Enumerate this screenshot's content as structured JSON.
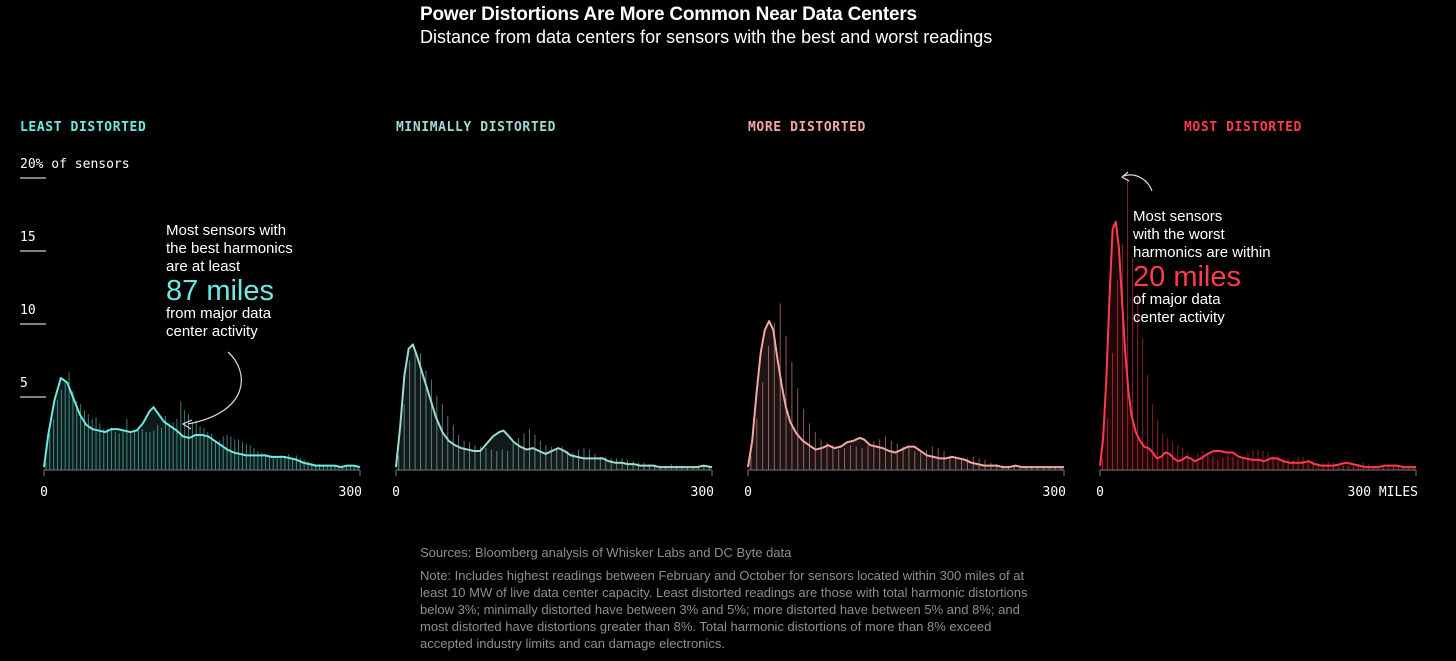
{
  "header": {
    "title": "Power Distortions Are More Common Near Data Centers",
    "subtitle": "Distance from data centers for sensors with the best and worst readings"
  },
  "footer": {
    "sources": "Sources: Bloomberg analysis of Whisker Labs and DC Byte data",
    "note": "Note: Includes highest readings between February and October for sensors located within 300 miles of at least 10 MW of live data center capacity. Least distorted readings are those with total harmonic distortions below 3%; minimally distorted have between 3% and 5%; more distorted have between 5% and 8%; and most distorted have distortions greater than 8%. Total harmonic distortions of more than 8% exceed accepted industry limits and can damage electronics."
  },
  "annotations": {
    "left": {
      "lines": [
        "Most sensors with",
        "the best harmonics",
        "are at least"
      ],
      "highlight": "87 miles",
      "after": [
        "from major data",
        "center activity"
      ]
    },
    "right": {
      "lines": [
        "Most sensors",
        "with the worst",
        "harmonics are within"
      ],
      "highlight": "20 miles",
      "after": [
        "of major data",
        "center activity"
      ]
    }
  },
  "chart_data": {
    "type": "area",
    "y_axis": {
      "ylim": [
        0,
        20
      ],
      "ticks": [
        {
          "value": 20,
          "label": "20% of sensors"
        },
        {
          "value": 15,
          "label": "15"
        },
        {
          "value": 10,
          "label": "10"
        },
        {
          "value": 5,
          "label": "5"
        }
      ]
    },
    "x_axis": {
      "xlim": [
        0,
        300
      ]
    },
    "panels": [
      {
        "name": "LEAST DISTORTED",
        "color": "#6ee8e0",
        "x_tick_labels": [
          "0",
          "300"
        ],
        "density": [
          [
            0,
            0.2
          ],
          [
            4,
            2.4
          ],
          [
            10,
            4.8
          ],
          [
            16,
            6.3
          ],
          [
            22,
            6.0
          ],
          [
            28,
            4.9
          ],
          [
            34,
            3.8
          ],
          [
            40,
            3.1
          ],
          [
            46,
            2.8
          ],
          [
            52,
            2.7
          ],
          [
            58,
            2.6
          ],
          [
            64,
            2.8
          ],
          [
            70,
            2.8
          ],
          [
            76,
            2.7
          ],
          [
            82,
            2.6
          ],
          [
            88,
            2.7
          ],
          [
            94,
            3.2
          ],
          [
            100,
            4.0
          ],
          [
            104,
            4.3
          ],
          [
            108,
            3.9
          ],
          [
            114,
            3.3
          ],
          [
            120,
            3.0
          ],
          [
            126,
            2.7
          ],
          [
            132,
            2.3
          ],
          [
            138,
            2.2
          ],
          [
            144,
            2.4
          ],
          [
            150,
            2.4
          ],
          [
            156,
            2.3
          ],
          [
            162,
            2.0
          ],
          [
            168,
            1.7
          ],
          [
            174,
            1.4
          ],
          [
            180,
            1.2
          ],
          [
            186,
            1.1
          ],
          [
            192,
            1.0
          ],
          [
            198,
            1.0
          ],
          [
            204,
            1.0
          ],
          [
            210,
            1.0
          ],
          [
            216,
            0.9
          ],
          [
            222,
            0.9
          ],
          [
            228,
            0.9
          ],
          [
            234,
            0.8
          ],
          [
            240,
            0.7
          ],
          [
            246,
            0.5
          ],
          [
            252,
            0.4
          ],
          [
            258,
            0.3
          ],
          [
            264,
            0.3
          ],
          [
            270,
            0.3
          ],
          [
            276,
            0.3
          ],
          [
            282,
            0.2
          ],
          [
            288,
            0.3
          ],
          [
            294,
            0.3
          ],
          [
            300,
            0.2
          ]
        ],
        "bars": [
          0.5,
          2.5,
          3.5,
          4.8,
          5.5,
          6.1,
          6.7,
          5.4,
          4.7,
          4.5,
          4.1,
          3.8,
          3.5,
          3.6,
          3.2,
          2.8,
          2.8,
          2.9,
          2.6,
          2.5,
          2.8,
          3.5,
          2.6,
          2.8,
          2.7,
          2.8,
          2.6,
          2.6,
          2.7,
          3.1,
          2.9,
          3.7,
          3.2,
          3.3,
          3.5,
          4.7,
          4.1,
          3.8,
          3.3,
          3.4,
          3.0,
          2.9,
          2.6,
          2.5,
          2.0,
          2.0,
          2.3,
          2.4,
          2.3,
          2.1,
          2.1,
          1.9,
          1.8,
          1.7,
          1.5,
          1.3,
          1.2,
          1.1,
          1.0,
          0.9,
          1.0,
          1.0,
          0.9,
          1.1,
          0.8,
          1.0,
          0.8,
          0.7,
          0.6,
          0.5,
          0.4,
          0.4,
          0.3,
          0.3,
          0.3,
          0.3,
          0.3,
          0.2,
          0.2,
          0.3,
          0.3,
          0.2
        ]
      },
      {
        "name": "MINIMALLY DISTORTED",
        "color": "#9fd9d3",
        "x_tick_labels": [
          "0",
          "300"
        ],
        "density": [
          [
            0,
            0.2
          ],
          [
            4,
            3.0
          ],
          [
            8,
            6.5
          ],
          [
            12,
            8.3
          ],
          [
            16,
            8.6
          ],
          [
            20,
            7.8
          ],
          [
            26,
            6.4
          ],
          [
            32,
            5.0
          ],
          [
            38,
            3.6
          ],
          [
            44,
            2.6
          ],
          [
            50,
            2.0
          ],
          [
            56,
            1.7
          ],
          [
            62,
            1.5
          ],
          [
            68,
            1.4
          ],
          [
            74,
            1.3
          ],
          [
            80,
            1.3
          ],
          [
            86,
            1.8
          ],
          [
            92,
            2.3
          ],
          [
            98,
            2.6
          ],
          [
            102,
            2.7
          ],
          [
            106,
            2.4
          ],
          [
            112,
            1.9
          ],
          [
            118,
            1.6
          ],
          [
            124,
            1.4
          ],
          [
            130,
            1.5
          ],
          [
            136,
            1.3
          ],
          [
            142,
            1.1
          ],
          [
            148,
            1.3
          ],
          [
            154,
            1.5
          ],
          [
            160,
            1.3
          ],
          [
            166,
            1.0
          ],
          [
            172,
            0.9
          ],
          [
            178,
            0.8
          ],
          [
            184,
            0.8
          ],
          [
            190,
            0.8
          ],
          [
            196,
            0.8
          ],
          [
            202,
            0.6
          ],
          [
            208,
            0.5
          ],
          [
            214,
            0.5
          ],
          [
            220,
            0.4
          ],
          [
            226,
            0.4
          ],
          [
            232,
            0.3
          ],
          [
            238,
            0.3
          ],
          [
            244,
            0.3
          ],
          [
            250,
            0.2
          ],
          [
            256,
            0.2
          ],
          [
            262,
            0.2
          ],
          [
            268,
            0.2
          ],
          [
            274,
            0.2
          ],
          [
            280,
            0.2
          ],
          [
            286,
            0.2
          ],
          [
            292,
            0.3
          ],
          [
            300,
            0.2
          ]
        ],
        "bars": [
          1.0,
          4.5,
          7.5,
          8.2,
          8.0,
          6.8,
          6.2,
          5.1,
          4.5,
          3.7,
          3.1,
          2.4,
          2.0,
          1.9,
          1.7,
          1.6,
          1.5,
          1.4,
          1.3,
          1.4,
          1.3,
          1.8,
          2.2,
          2.5,
          2.8,
          2.4,
          2.0,
          1.7,
          1.6,
          1.5,
          1.6,
          1.3,
          1.2,
          1.4,
          1.5,
          1.4,
          1.1,
          0.9,
          0.9,
          0.8,
          0.8,
          0.8,
          0.7,
          0.6,
          0.5,
          0.5,
          0.4,
          0.4,
          0.3,
          0.3,
          0.4,
          0.3,
          0.3,
          0.2,
          0.2,
          0.2,
          0.3,
          0.2
        ]
      },
      {
        "name": "MORE DISTORTED",
        "color": "#f4a7a4",
        "x_tick_labels": [
          "0",
          "300"
        ],
        "density": [
          [
            0,
            0.2
          ],
          [
            4,
            2.0
          ],
          [
            8,
            5.2
          ],
          [
            12,
            8.0
          ],
          [
            16,
            9.6
          ],
          [
            20,
            10.2
          ],
          [
            24,
            9.6
          ],
          [
            28,
            7.6
          ],
          [
            32,
            5.8
          ],
          [
            36,
            4.3
          ],
          [
            40,
            3.3
          ],
          [
            46,
            2.5
          ],
          [
            52,
            2.0
          ],
          [
            58,
            1.7
          ],
          [
            64,
            1.4
          ],
          [
            70,
            1.5
          ],
          [
            76,
            1.7
          ],
          [
            82,
            1.5
          ],
          [
            88,
            1.6
          ],
          [
            94,
            1.9
          ],
          [
            100,
            2.0
          ],
          [
            106,
            2.2
          ],
          [
            110,
            2.1
          ],
          [
            116,
            1.7
          ],
          [
            122,
            1.6
          ],
          [
            128,
            1.5
          ],
          [
            134,
            1.3
          ],
          [
            140,
            1.2
          ],
          [
            146,
            1.4
          ],
          [
            152,
            1.6
          ],
          [
            158,
            1.6
          ],
          [
            164,
            1.3
          ],
          [
            170,
            1.0
          ],
          [
            176,
            0.9
          ],
          [
            182,
            0.8
          ],
          [
            188,
            0.8
          ],
          [
            194,
            0.9
          ],
          [
            200,
            0.8
          ],
          [
            206,
            0.7
          ],
          [
            212,
            0.5
          ],
          [
            218,
            0.4
          ],
          [
            224,
            0.3
          ],
          [
            230,
            0.3
          ],
          [
            236,
            0.3
          ],
          [
            242,
            0.2
          ],
          [
            248,
            0.2
          ],
          [
            254,
            0.3
          ],
          [
            260,
            0.2
          ],
          [
            266,
            0.2
          ],
          [
            272,
            0.2
          ],
          [
            278,
            0.2
          ],
          [
            284,
            0.2
          ],
          [
            292,
            0.2
          ],
          [
            300,
            0.2
          ]
        ],
        "bars": [
          1.0,
          3.5,
          6.0,
          8.5,
          10.1,
          11.4,
          9.2,
          7.4,
          5.6,
          4.2,
          3.2,
          2.6,
          2.1,
          1.9,
          1.7,
          1.4,
          1.5,
          1.7,
          1.6,
          1.5,
          1.7,
          2.0,
          2.1,
          2.3,
          2.0,
          1.8,
          1.6,
          1.5,
          1.3,
          1.2,
          1.4,
          1.6,
          1.5,
          1.3,
          1.0,
          0.9,
          0.8,
          0.8,
          0.9,
          0.8,
          0.7,
          0.5,
          0.4,
          0.3,
          0.3,
          0.3,
          0.2,
          0.2,
          0.3,
          0.2,
          0.2,
          0.2,
          0.2,
          0.2
        ]
      },
      {
        "name": "MOST DISTORTED",
        "color": "#ff3b4e",
        "x_tick_labels": [
          "0",
          "300 MILES"
        ],
        "density": [
          [
            0,
            0.3
          ],
          [
            3,
            2.2
          ],
          [
            6,
            6.2
          ],
          [
            9,
            11.8
          ],
          [
            12,
            16.5
          ],
          [
            15,
            17.0
          ],
          [
            18,
            15.2
          ],
          [
            21,
            11.5
          ],
          [
            24,
            8.0
          ],
          [
            27,
            5.4
          ],
          [
            30,
            3.7
          ],
          [
            34,
            2.6
          ],
          [
            38,
            2.0
          ],
          [
            42,
            1.6
          ],
          [
            46,
            1.5
          ],
          [
            50,
            1.2
          ],
          [
            54,
            0.8
          ],
          [
            58,
            0.9
          ],
          [
            62,
            1.2
          ],
          [
            66,
            1.1
          ],
          [
            70,
            0.8
          ],
          [
            74,
            0.6
          ],
          [
            78,
            0.7
          ],
          [
            82,
            0.9
          ],
          [
            86,
            0.8
          ],
          [
            90,
            0.6
          ],
          [
            96,
            0.8
          ],
          [
            102,
            1.1
          ],
          [
            108,
            1.3
          ],
          [
            114,
            1.3
          ],
          [
            120,
            1.2
          ],
          [
            126,
            1.2
          ],
          [
            132,
            0.9
          ],
          [
            138,
            0.8
          ],
          [
            144,
            0.7
          ],
          [
            150,
            0.7
          ],
          [
            156,
            0.6
          ],
          [
            162,
            0.8
          ],
          [
            168,
            0.8
          ],
          [
            174,
            0.6
          ],
          [
            180,
            0.5
          ],
          [
            186,
            0.5
          ],
          [
            192,
            0.5
          ],
          [
            198,
            0.6
          ],
          [
            204,
            0.4
          ],
          [
            210,
            0.3
          ],
          [
            216,
            0.3
          ],
          [
            222,
            0.3
          ],
          [
            228,
            0.4
          ],
          [
            234,
            0.5
          ],
          [
            240,
            0.4
          ],
          [
            246,
            0.3
          ],
          [
            252,
            0.2
          ],
          [
            258,
            0.2
          ],
          [
            264,
            0.2
          ],
          [
            270,
            0.3
          ],
          [
            276,
            0.3
          ],
          [
            282,
            0.3
          ],
          [
            288,
            0.2
          ],
          [
            294,
            0.2
          ],
          [
            300,
            0.2
          ]
        ],
        "bars": [
          0.8,
          3.5,
          8.0,
          13.0,
          15.5,
          20.0,
          14.5,
          12.0,
          9.0,
          6.5,
          4.5,
          3.4,
          2.5,
          2.2,
          1.9,
          1.7,
          1.5,
          1.2,
          0.8,
          1.1,
          1.3,
          1.1,
          0.9,
          0.7,
          0.8,
          1.0,
          0.9,
          0.7,
          0.9,
          1.2,
          1.4,
          1.4,
          1.3,
          1.2,
          1.0,
          0.9,
          0.8,
          0.8,
          0.7,
          0.9,
          0.9,
          0.7,
          0.6,
          0.5,
          0.5,
          0.6,
          0.5,
          0.4,
          0.3,
          0.3,
          0.3,
          0.4,
          0.5,
          0.4,
          0.3,
          0.2,
          0.2,
          0.2,
          0.3,
          0.3,
          0.3,
          0.2,
          0.2
        ]
      }
    ]
  }
}
